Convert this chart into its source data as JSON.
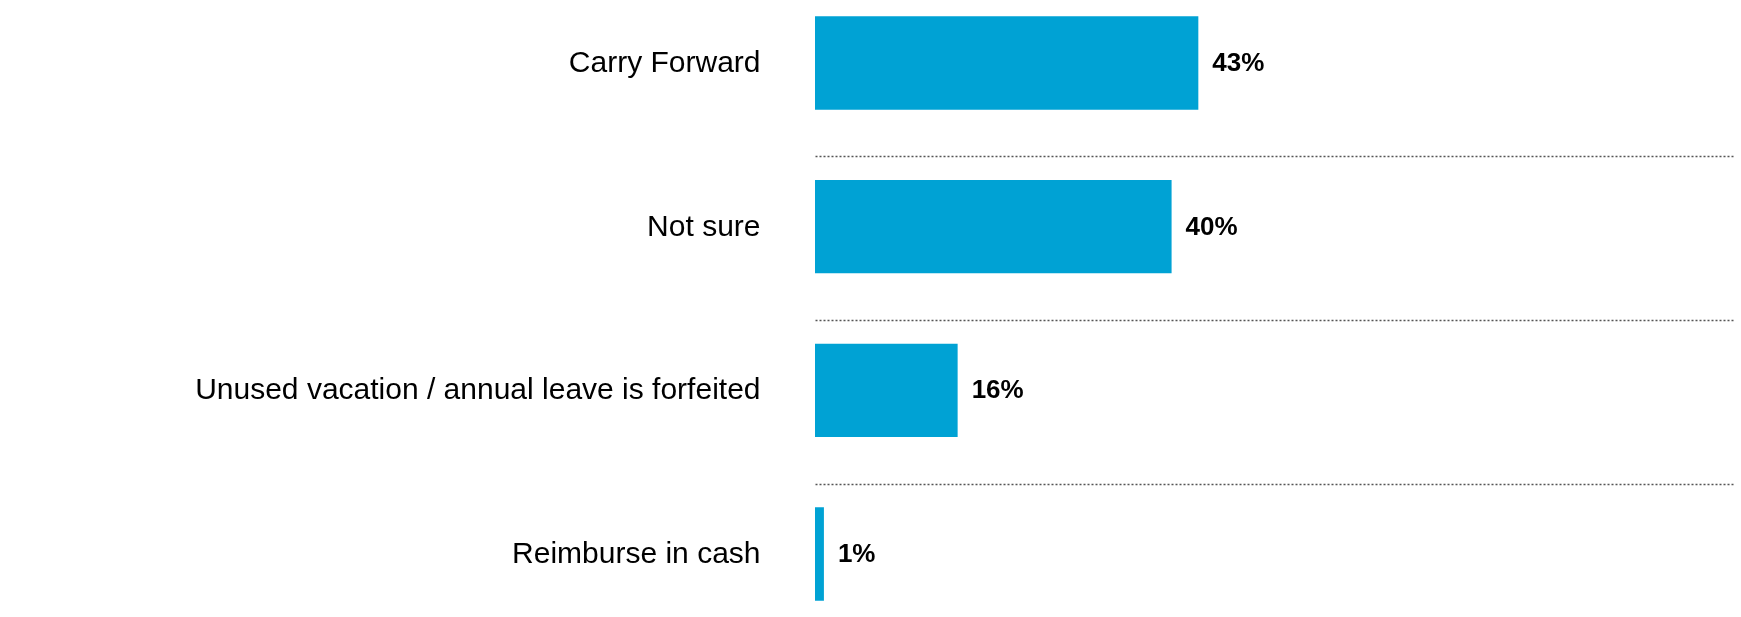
{
  "chart_data": {
    "type": "bar",
    "orientation": "horizontal",
    "categories": [
      "Carry Forward",
      "Not sure",
      "Unused vacation / annual leave is forfeited",
      "Reimburse in cash"
    ],
    "values": [
      43,
      40,
      16,
      1
    ],
    "value_labels": [
      "43%",
      "40%",
      "16%",
      "1%"
    ],
    "color": "#00a2d4",
    "grid": "y"
  }
}
